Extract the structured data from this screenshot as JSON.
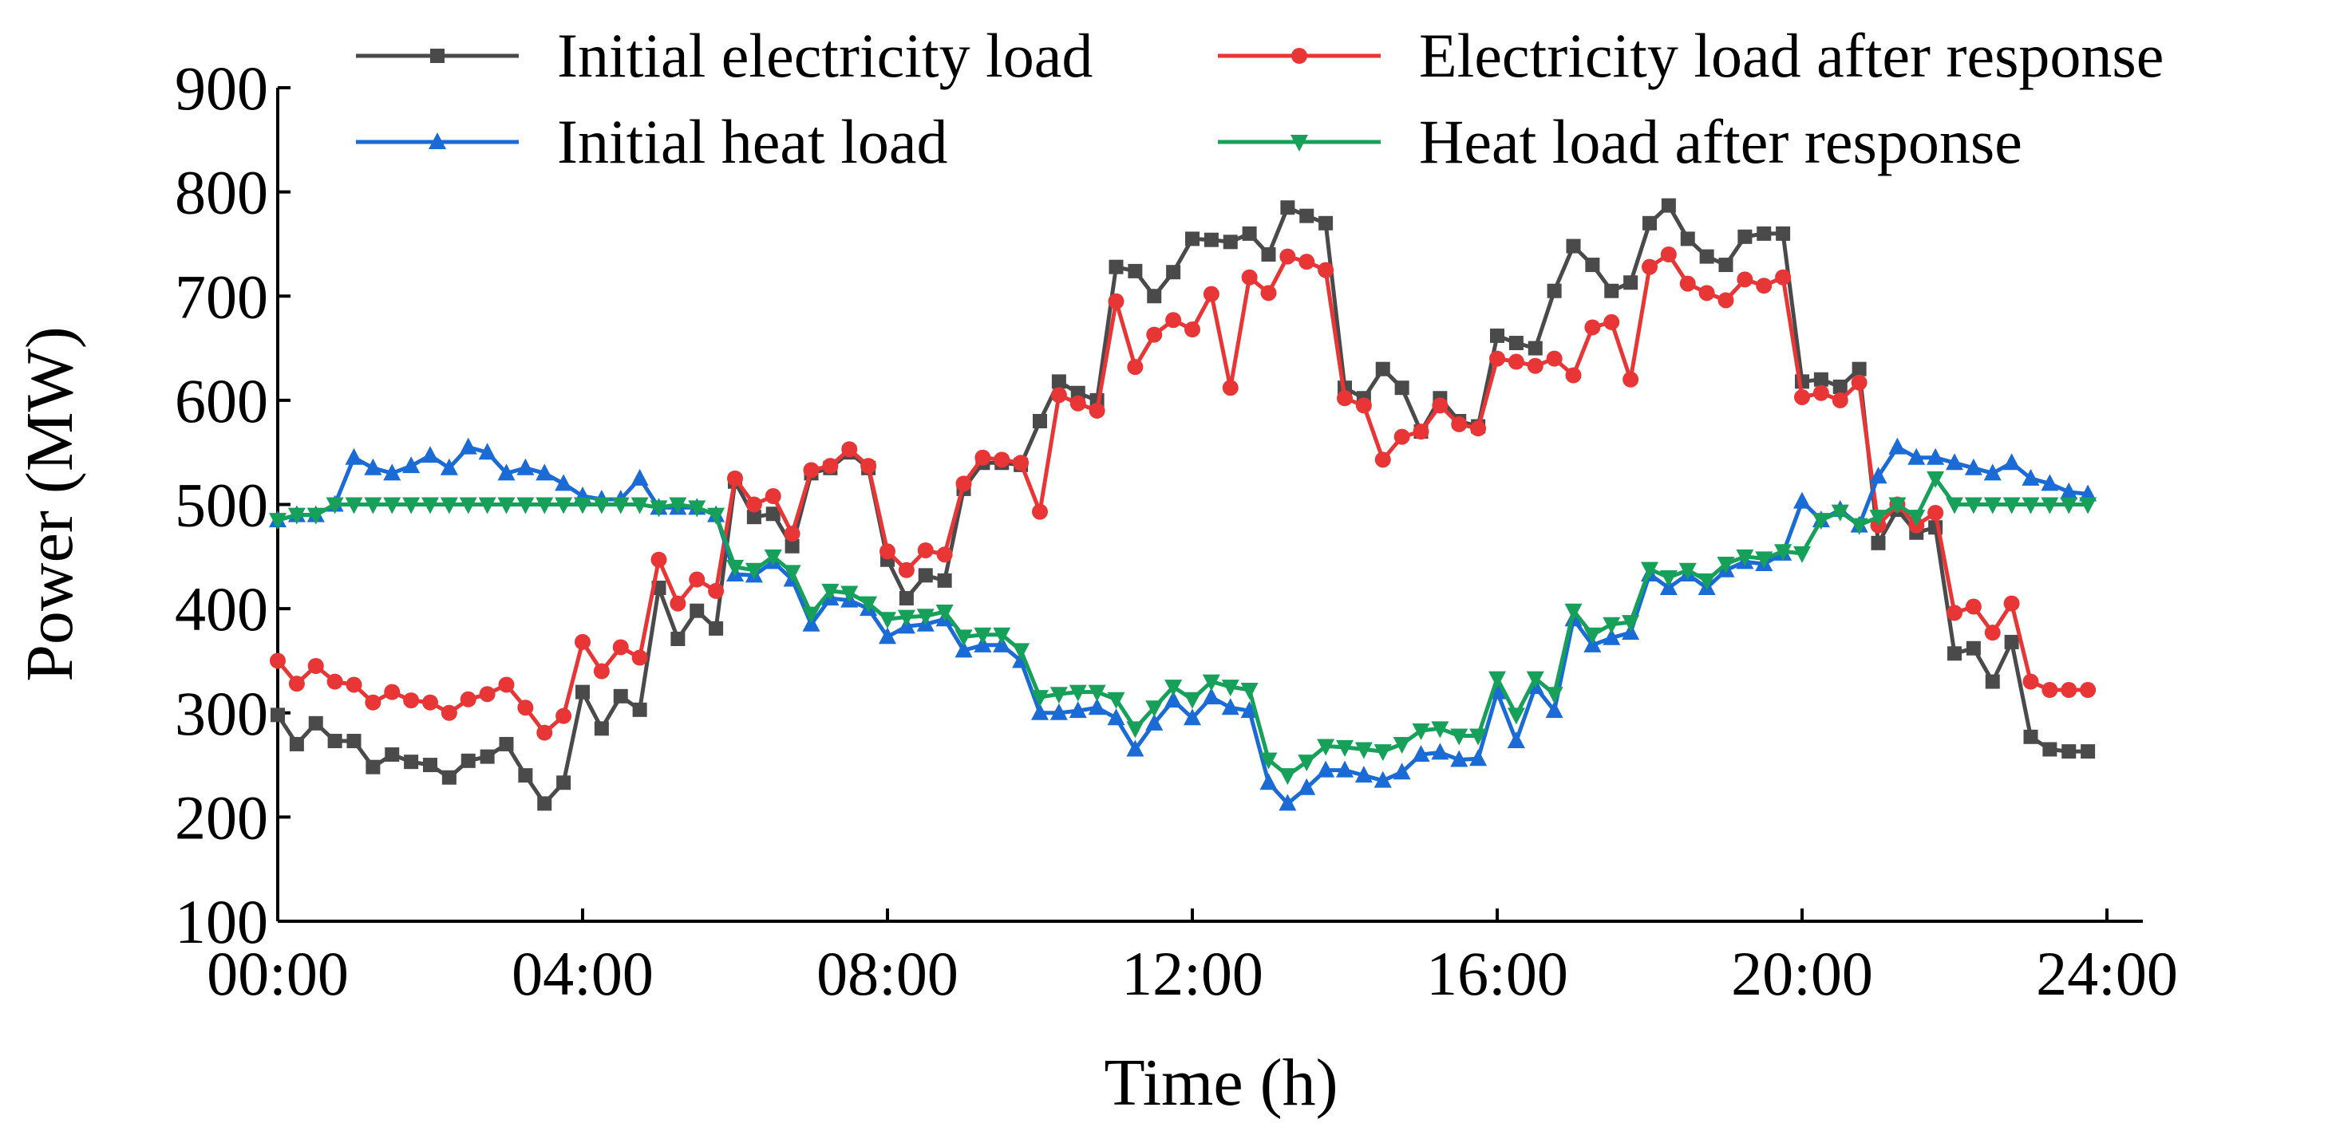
{
  "chart_data": {
    "type": "line",
    "title": "",
    "xlabel": "Time (h)",
    "ylabel": "Power (MW)",
    "xlim": [
      0,
      24
    ],
    "ylim": [
      100,
      900
    ],
    "grid": false,
    "legend_position": "top",
    "x_ticks": [
      {
        "value": 0,
        "label": "00:00"
      },
      {
        "value": 4,
        "label": "04:00"
      },
      {
        "value": 8,
        "label": "08:00"
      },
      {
        "value": 12,
        "label": "12:00"
      },
      {
        "value": 16,
        "label": "16:00"
      },
      {
        "value": 20,
        "label": "20:00"
      },
      {
        "value": 24,
        "label": "24:00"
      }
    ],
    "y_ticks": [
      {
        "value": 100,
        "label": "100"
      },
      {
        "value": 200,
        "label": "200"
      },
      {
        "value": 300,
        "label": "300"
      },
      {
        "value": 400,
        "label": "400"
      },
      {
        "value": 500,
        "label": "500"
      },
      {
        "value": 600,
        "label": "600"
      },
      {
        "value": 700,
        "label": "700"
      },
      {
        "value": 800,
        "label": "800"
      },
      {
        "value": 900,
        "label": "900"
      }
    ],
    "x_step_hours": 0.25,
    "series": [
      {
        "name": "Initial electricity load",
        "color": "#4a4a4a",
        "marker": "square",
        "values": [
          298,
          270,
          290,
          273,
          273,
          248,
          260,
          253,
          250,
          238,
          254,
          258,
          270,
          240,
          213,
          233,
          320,
          285,
          316,
          303,
          420,
          371,
          398,
          381,
          522,
          488,
          491,
          460,
          530,
          535,
          550,
          535,
          447,
          410,
          432,
          427,
          515,
          540,
          540,
          538,
          580,
          618,
          607,
          600,
          728,
          724,
          700,
          723,
          755,
          754,
          752,
          760,
          740,
          785,
          777,
          770,
          612,
          602,
          630,
          612,
          570,
          602,
          580,
          575,
          662,
          655,
          650,
          705,
          748,
          730,
          705,
          713,
          770,
          787,
          755,
          738,
          730,
          757,
          760,
          760,
          618,
          620,
          613,
          630,
          463,
          495,
          473,
          478,
          357,
          362,
          330,
          368,
          277,
          265,
          263,
          263
        ]
      },
      {
        "name": "Electricity load after response",
        "color": "#e83535",
        "marker": "circle",
        "values": [
          350,
          328,
          345,
          330,
          327,
          310,
          320,
          312,
          310,
          300,
          313,
          318,
          327,
          305,
          281,
          297,
          368,
          340,
          363,
          353,
          447,
          405,
          428,
          417,
          525,
          500,
          508,
          472,
          533,
          537,
          553,
          537,
          455,
          437,
          456,
          452,
          520,
          545,
          543,
          540,
          493,
          605,
          597,
          590,
          695,
          632,
          663,
          677,
          668,
          702,
          612,
          718,
          703,
          738,
          733,
          725,
          602,
          595,
          543,
          565,
          570,
          595,
          577,
          573,
          640,
          637,
          633,
          640,
          624,
          670,
          675,
          620,
          728,
          740,
          712,
          703,
          696,
          716,
          710,
          718,
          603,
          607,
          600,
          617,
          480,
          500,
          480,
          492,
          396,
          402,
          377,
          405,
          330,
          322,
          322,
          322
        ]
      },
      {
        "name": "Initial heat load",
        "color": "#1a6bd6",
        "marker": "triangle-up",
        "values": [
          485,
          490,
          490,
          500,
          545,
          535,
          530,
          537,
          547,
          535,
          555,
          550,
          530,
          535,
          530,
          520,
          508,
          505,
          505,
          525,
          497,
          497,
          497,
          490,
          433,
          432,
          445,
          428,
          385,
          410,
          408,
          400,
          373,
          383,
          385,
          390,
          360,
          365,
          365,
          350,
          300,
          300,
          302,
          305,
          295,
          265,
          290,
          312,
          295,
          315,
          305,
          302,
          233,
          213,
          228,
          245,
          245,
          240,
          235,
          243,
          260,
          262,
          255,
          256,
          320,
          273,
          325,
          302,
          390,
          365,
          372,
          377,
          433,
          420,
          433,
          420,
          437,
          445,
          443,
          453,
          503,
          485,
          495,
          480,
          527,
          555,
          545,
          545,
          540,
          535,
          530,
          540,
          525,
          520,
          512,
          510
        ]
      },
      {
        "name": "Heat load after response",
        "color": "#17a05a",
        "marker": "triangle-down",
        "values": [
          485,
          490,
          490,
          500,
          500,
          500,
          500,
          500,
          500,
          500,
          500,
          500,
          500,
          500,
          500,
          500,
          500,
          500,
          500,
          500,
          497,
          500,
          497,
          490,
          440,
          437,
          450,
          435,
          395,
          417,
          415,
          405,
          390,
          392,
          393,
          397,
          373,
          375,
          375,
          360,
          315,
          318,
          320,
          320,
          313,
          285,
          305,
          325,
          313,
          330,
          325,
          322,
          255,
          240,
          253,
          268,
          267,
          265,
          263,
          270,
          283,
          285,
          278,
          278,
          333,
          298,
          333,
          318,
          398,
          375,
          385,
          387,
          438,
          430,
          437,
          427,
          443,
          450,
          448,
          455,
          453,
          485,
          493,
          480,
          488,
          500,
          488,
          525,
          500,
          500,
          500,
          500,
          500,
          500,
          500,
          500
        ]
      }
    ]
  }
}
